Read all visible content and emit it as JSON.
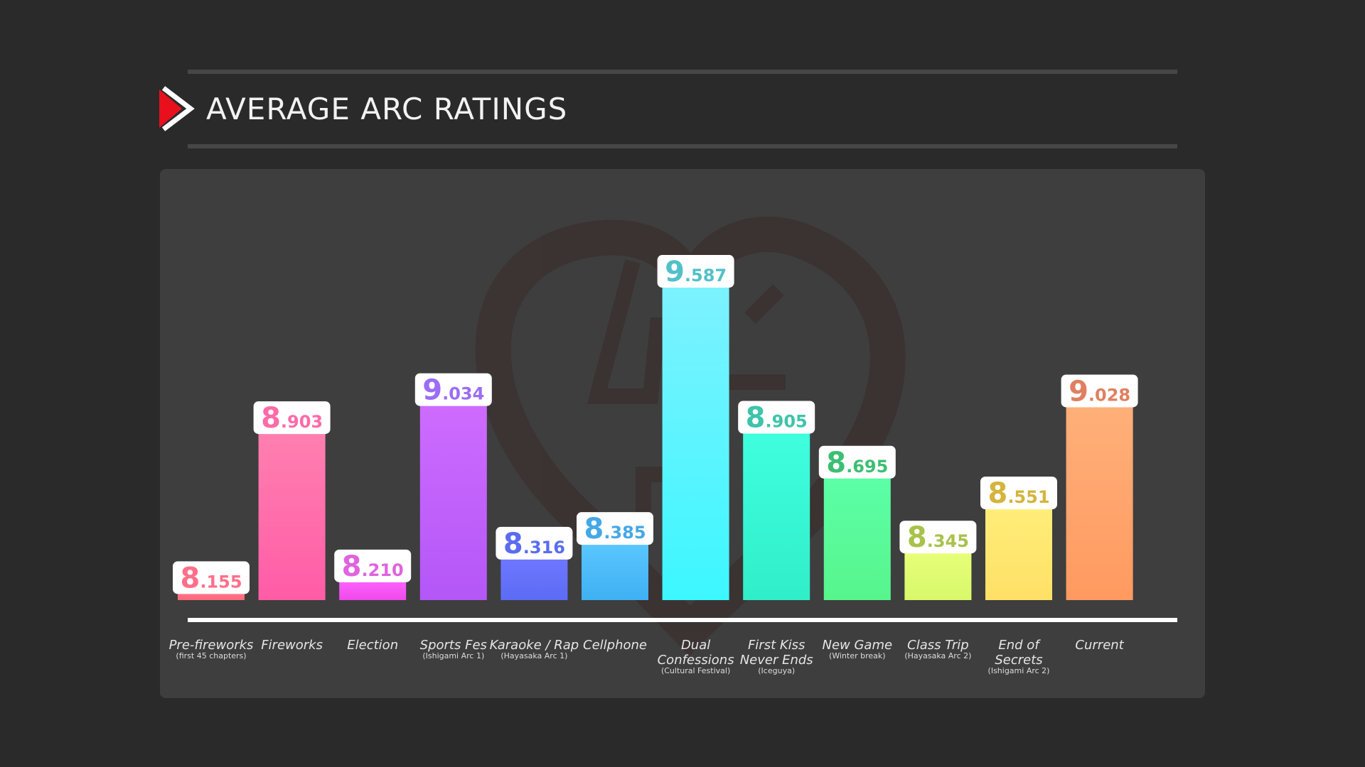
{
  "header": {
    "title": "AVERAGE ARC RATINGS",
    "accent_color": "#e8101c",
    "icon": "play-chevron-icon"
  },
  "chart_data": {
    "type": "bar",
    "title": "AVERAGE ARC RATINGS",
    "xlabel": "",
    "ylabel": "",
    "ylim": [
      8.1,
      9.7
    ],
    "grid": false,
    "legend": "none",
    "categories": [
      {
        "name": "Pre-fireworks",
        "sub": [
          "(first 45 chapters)"
        ]
      },
      {
        "name": "Fireworks",
        "sub": []
      },
      {
        "name": "Election",
        "sub": []
      },
      {
        "name": "Sports Fes",
        "sub": [
          "(Ishigami Arc 1)"
        ]
      },
      {
        "name": "Karaoke / Rap",
        "sub": [
          "(Hayasaka Arc 1)"
        ]
      },
      {
        "name": "Cellphone",
        "sub": []
      },
      {
        "name": "Dual\nConfessions",
        "sub": [
          "(Cultural Festival)"
        ]
      },
      {
        "name": "First Kiss\nNever Ends",
        "sub": [
          "(Iceguya)"
        ]
      },
      {
        "name": "New Game",
        "sub": [
          "(Winter break)"
        ]
      },
      {
        "name": "Class Trip",
        "sub": [
          "(Hayasaka Arc 2)"
        ]
      },
      {
        "name": "End of\nSecrets",
        "sub": [
          "(Ishigami Arc 2)"
        ]
      },
      {
        "name": "Current",
        "sub": []
      }
    ],
    "values": [
      8.155,
      8.903,
      8.21,
      9.034,
      8.316,
      8.385,
      9.587,
      8.905,
      8.695,
      8.345,
      8.551,
      9.028
    ],
    "value_labels": [
      {
        "int": "8",
        "dec": ".155"
      },
      {
        "int": "8",
        "dec": ".903"
      },
      {
        "int": "8",
        "dec": ".210"
      },
      {
        "int": "9",
        "dec": ".034"
      },
      {
        "int": "8",
        "dec": ".316"
      },
      {
        "int": "8",
        "dec": ".385"
      },
      {
        "int": "9",
        "dec": ".587"
      },
      {
        "int": "8",
        "dec": ".905"
      },
      {
        "int": "8",
        "dec": ".695"
      },
      {
        "int": "8",
        "dec": ".345"
      },
      {
        "int": "8",
        "dec": ".551"
      },
      {
        "int": "9",
        "dec": ".028"
      }
    ],
    "colors": [
      {
        "top": "#ff7a8e",
        "bottom": "#ff6a7a",
        "label": "#ff6f8a"
      },
      {
        "top": "#ff80b0",
        "bottom": "#ff5ca6",
        "label": "#ff6aa8"
      },
      {
        "top": "#ff6aff",
        "bottom": "#f048ec",
        "label": "#e063e0"
      },
      {
        "top": "#cf6cff",
        "bottom": "#b357f7",
        "label": "#9c6cf5"
      },
      {
        "top": "#7078ff",
        "bottom": "#5c6cf5",
        "label": "#5a6cf0"
      },
      {
        "top": "#5cc8ff",
        "bottom": "#3fb0f2",
        "label": "#45a8e6"
      },
      {
        "top": "#7ef2ff",
        "bottom": "#3cf7ff",
        "label": "#52c0c8"
      },
      {
        "top": "#3fffe0",
        "bottom": "#30eec8",
        "label": "#3ec4aa"
      },
      {
        "top": "#5cffa8",
        "bottom": "#57f58c",
        "label": "#3cbf72"
      },
      {
        "top": "#e8ff7a",
        "bottom": "#d8f86a",
        "label": "#a8c24a"
      },
      {
        "top": "#ffee7a",
        "bottom": "#ffe066",
        "label": "#d4b43c"
      },
      {
        "top": "#ffb07a",
        "bottom": "#ff9a60",
        "label": "#e08060"
      }
    ]
  }
}
